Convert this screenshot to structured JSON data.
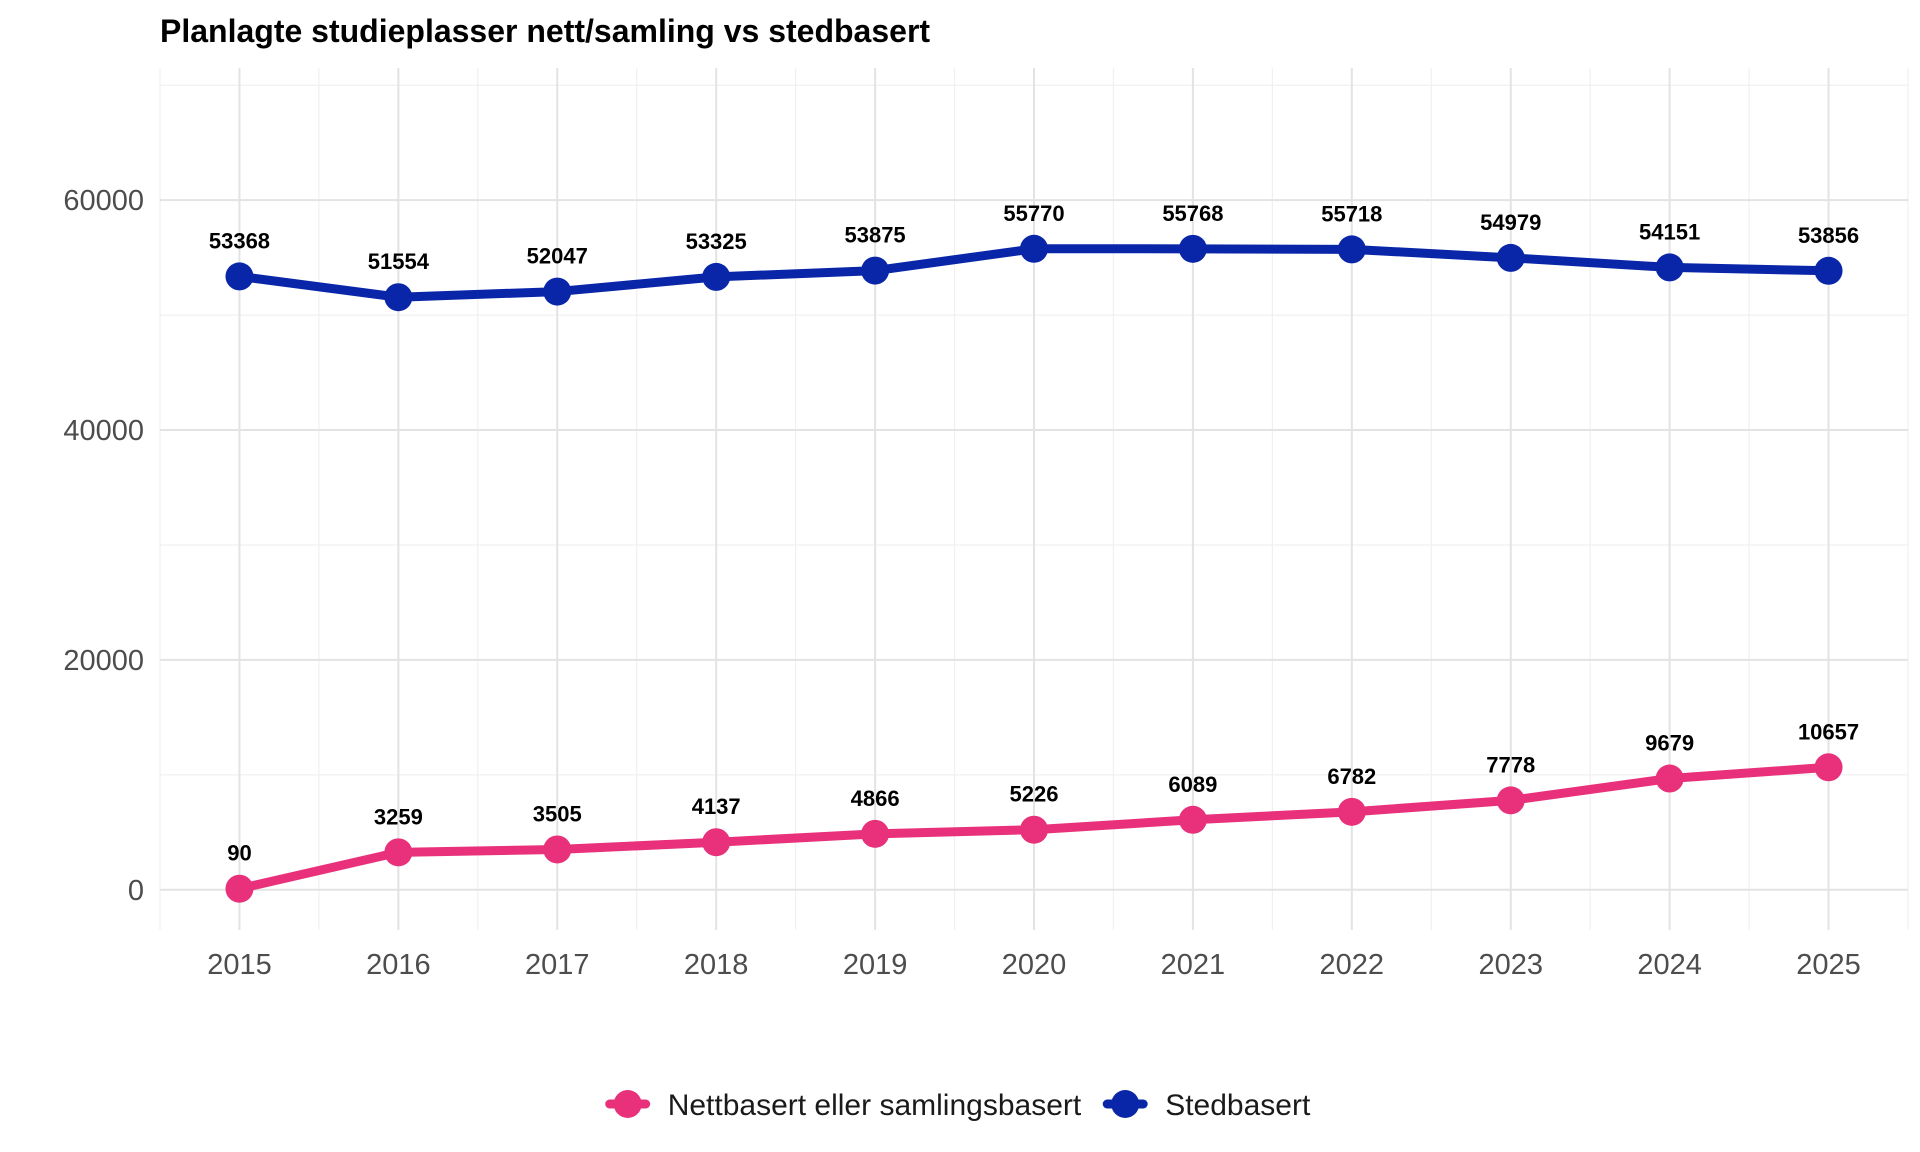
{
  "chart_data": {
    "type": "line",
    "title": "Planlagte studieplasser nett/samling vs stedbasert",
    "xlabel": "",
    "ylabel": "",
    "x": [
      2015,
      2016,
      2017,
      2018,
      2019,
      2020,
      2021,
      2022,
      2023,
      2024,
      2025
    ],
    "xlim": [
      2014.5,
      2025.5
    ],
    "ylim": [
      -3500,
      71500
    ],
    "y_ticks": [
      0,
      20000,
      40000,
      60000
    ],
    "grid": true,
    "legend_position": "bottom",
    "series": [
      {
        "name": "Nettbasert eller samlingsbasert",
        "color": "#e8317a",
        "values": [
          90,
          3259,
          3505,
          4137,
          4866,
          5226,
          6089,
          6782,
          7778,
          9679,
          10657
        ]
      },
      {
        "name": "Stedbasert",
        "color": "#0a26a8",
        "values": [
          53368,
          51554,
          52047,
          53325,
          53875,
          55770,
          55768,
          55718,
          54979,
          54151,
          53856
        ]
      }
    ]
  }
}
